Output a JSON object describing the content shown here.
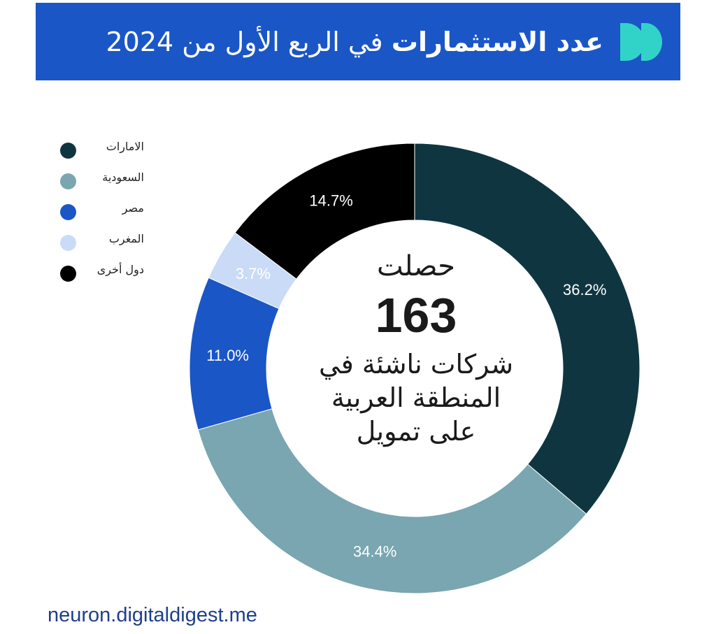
{
  "header": {
    "title_bold": "عدد الاستثمارات",
    "title_rest": "في الربع الأول من 2024"
  },
  "center": {
    "top": "حصلت",
    "number": "163",
    "body_line1": "شركات ناشئة في",
    "body_line2": "المنطقة العربية",
    "body_line3": "على تمويل"
  },
  "source": "neuron.digitaldigest.me",
  "chart_data": {
    "type": "pie",
    "variant": "donut",
    "title": "عدد الاستثمارات في الربع الأول من 2024",
    "categories": [
      "الامارات",
      "السعودية",
      "مصر",
      "المغرب",
      "دول أخرى"
    ],
    "values": [
      36.2,
      34.4,
      11.0,
      3.7,
      14.7
    ],
    "value_labels": [
      "36.2%",
      "34.4%",
      "11.0%",
      "3.7%",
      "14.7%"
    ],
    "colors": [
      "#0f3640",
      "#79a6b0",
      "#1a56c6",
      "#c9dbf6",
      "#000000"
    ],
    "legend_position": "top-left"
  }
}
